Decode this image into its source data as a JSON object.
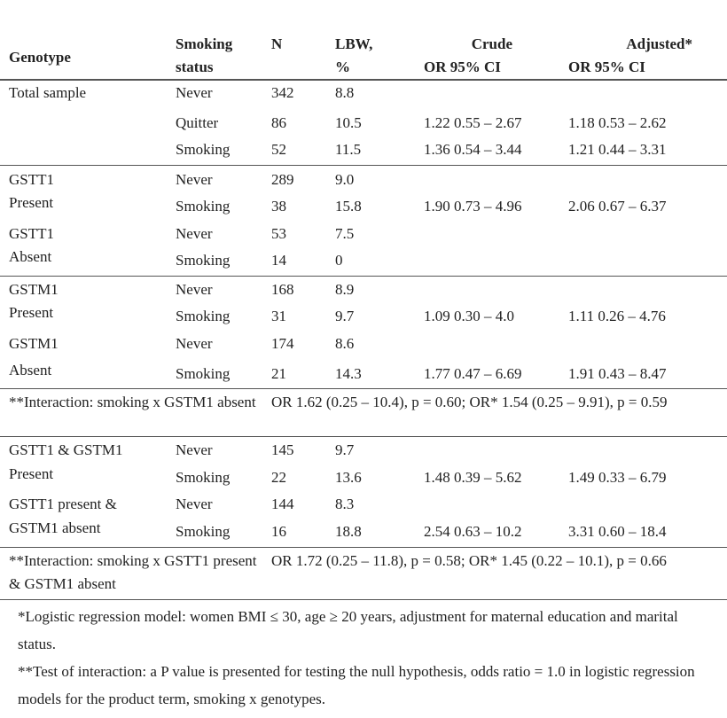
{
  "table": {
    "header": [
      [
        "Genotype"
      ],
      [
        "Smoking",
        "status"
      ],
      [
        "N"
      ],
      [
        "LBW,",
        "%"
      ],
      [
        "Crude",
        "OR 95% CI"
      ],
      [
        "Adjusted*",
        "OR 95% CI"
      ]
    ],
    "rows": [
      {
        "genotype": "Total sample",
        "smoking": "Never",
        "n": "342",
        "lbw": "8.8"
      },
      {
        "smoking": "Quitter",
        "n": "86",
        "lbw": "10.5",
        "crude": "1.22 0.55 – 2.67",
        "adjusted": "1.18 0.53 – 2.62"
      },
      {
        "smoking": "Smoking",
        "n": "52",
        "lbw": "11.5",
        "crude": "1.36 0.54 – 3.44",
        "adjusted": "1.21 0.44 – 3.31"
      },
      {
        "genotype": "GSTT1",
        "smoking": "Never",
        "n": "289",
        "lbw": "9.0"
      },
      {
        "genotype": "Present",
        "smoking": "Smoking",
        "n": "38",
        "lbw": "15.8",
        "crude": "1.90 0.73 – 4.96",
        "adjusted": "2.06 0.67 – 6.37"
      },
      {
        "genotype": "GSTT1",
        "smoking": "Never",
        "n": "53",
        "lbw": "7.5"
      },
      {
        "genotype": "Absent",
        "smoking": "Smoking",
        "n": "14",
        "lbw": "0"
      },
      {
        "genotype": "GSTM1",
        "smoking": "Never",
        "n": "168",
        "lbw": "8.9"
      },
      {
        "genotype": "Present",
        "smoking": "Smoking",
        "n": "31",
        "lbw": "9.7",
        "crude": "1.09 0.30 – 4.0",
        "adjusted": "1.11 0.26 – 4.76"
      },
      {
        "genotype": "GSTM1",
        "smoking": "Never",
        "n": "174",
        "lbw": "8.6"
      },
      {
        "genotype": "Absent",
        "smoking": "Smoking",
        "n": "21",
        "lbw": "14.3",
        "crude": "1.77 0.47 – 6.69",
        "adjusted": "1.91 0.43 – 8.47"
      },
      {
        "label": "**Interaction: smoking x GSTM1 absent",
        "text": "OR 1.62 (0.25 – 10.4), p = 0.60; OR* 1.54 (0.25 – 9.91), p = 0.59"
      },
      {
        "genotype": "GSTT1 & GSTM1",
        "smoking": "Never",
        "n": "145",
        "lbw": "9.7"
      },
      {
        "genotype": "Present",
        "smoking": "Smoking",
        "n": "22",
        "lbw": "13.6",
        "crude": "1.48 0.39 – 5.62",
        "adjusted": "1.49 0.33 – 6.79"
      },
      {
        "genotype": "GSTT1 present &",
        "smoking": "Never",
        "n": "144",
        "lbw": "8.3"
      },
      {
        "genotype": "GSTM1 absent",
        "smoking": "Smoking",
        "n": "16",
        "lbw": "18.8",
        "crude": "2.54 0.63 – 10.2",
        "adjusted": "3.31 0.60 – 18.4"
      },
      {
        "label": "**Interaction: smoking x GSTT1 present & GSTM1 absent",
        "text": "OR 1.72 (0.25 – 11.8), p = 0.58; OR* 1.45 (0.22 – 10.1), p = 0.66"
      }
    ],
    "footnotes": [
      "*Logistic regression model: women BMI ≤ 30, age ≥ 20 years, adjustment for maternal education and marital status.",
      "**Test of interaction: a P value is presented for testing the null hypothesis, odds ratio = 1.0 in logistic regression models for the product term, smoking x genotypes."
    ]
  }
}
